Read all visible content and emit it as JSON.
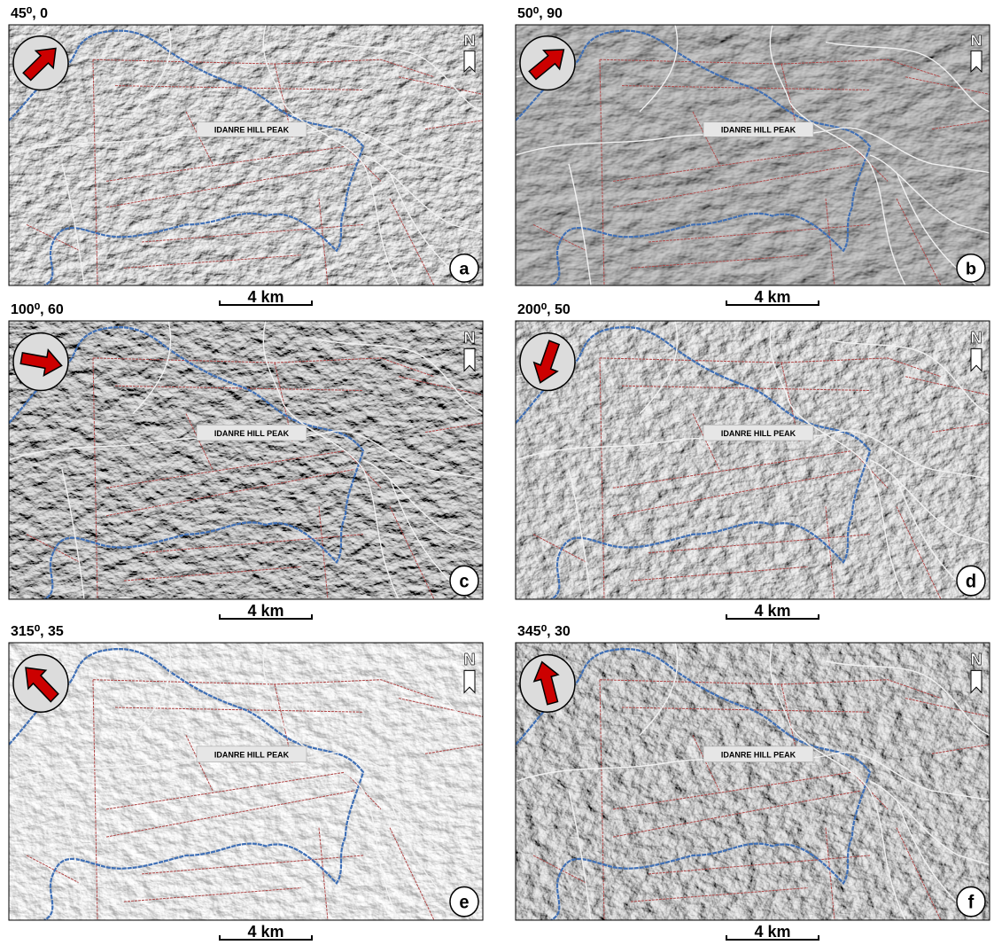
{
  "panels": [
    {
      "header": "45⁰, 0",
      "peak_label": "IDANRE HILL PEAK",
      "north": "N",
      "letter": "a",
      "scale": "4 km"
    },
    {
      "header": "50⁰, 90",
      "peak_label": "IDANRE HILL PEAK",
      "north": "N",
      "letter": "b",
      "scale": "4 km"
    },
    {
      "header": "100⁰, 60",
      "peak_label": "IDANRE HILL PEAK",
      "north": "N",
      "letter": "c",
      "scale": "4 km"
    },
    {
      "header": "200⁰, 50",
      "peak_label": "IDANRE HILL PEAK",
      "north": "N",
      "letter": "d",
      "scale": "4 km"
    },
    {
      "header": "315⁰, 35",
      "peak_label": "IDANRE HILL PEAK",
      "north": "N",
      "letter": "e",
      "scale": "4 km"
    },
    {
      "header": "345⁰, 30",
      "peak_label": "IDANRE HILL PEAK",
      "north": "N",
      "letter": "f",
      "scale": "4 km"
    }
  ]
}
